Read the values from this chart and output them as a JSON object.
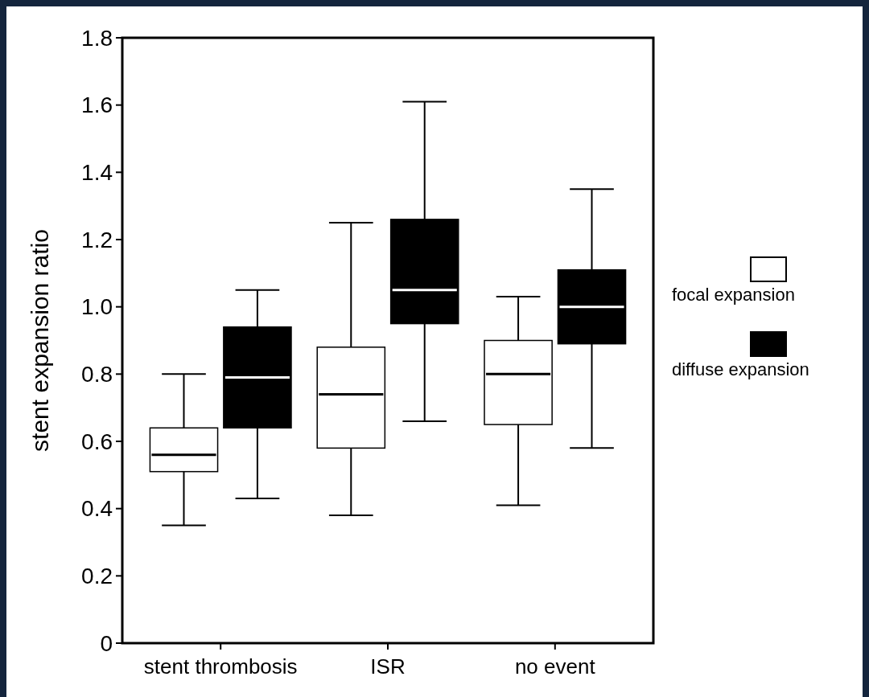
{
  "chart_data": {
    "type": "box",
    "ylabel": "stent expansion ratio",
    "categories": [
      "stent thrombosis",
      "ISR",
      "no event"
    ],
    "ylim": [
      0,
      1.8
    ],
    "yticks": [
      {
        "value": 0,
        "label": "0"
      },
      0.2,
      0.4,
      0.6,
      0.8,
      {
        "value": 1,
        "label": "1.0"
      },
      1.2,
      1.4,
      1.6,
      1.8
    ],
    "grid": false,
    "legend": "right",
    "series": [
      {
        "name": "focal expansion",
        "color": "#ffffff",
        "boxes": [
          {
            "low": 0.35,
            "q1": 0.51,
            "median": 0.56,
            "q3": 0.64,
            "high": 0.8
          },
          {
            "low": 0.38,
            "q1": 0.58,
            "median": 0.74,
            "q3": 0.88,
            "high": 1.25
          },
          {
            "low": 0.41,
            "q1": 0.65,
            "median": 0.8,
            "q3": 0.9,
            "high": 1.03
          }
        ]
      },
      {
        "name": "diffuse expansion",
        "color": "#000000",
        "boxes": [
          {
            "low": 0.43,
            "q1": 0.64,
            "median": 0.79,
            "q3": 0.94,
            "high": 1.05
          },
          {
            "low": 0.66,
            "q1": 0.95,
            "median": 1.05,
            "q3": 1.26,
            "high": 1.61
          },
          {
            "low": 0.58,
            "q1": 0.89,
            "median": 1.0,
            "q3": 1.11,
            "high": 1.35
          }
        ]
      }
    ]
  }
}
